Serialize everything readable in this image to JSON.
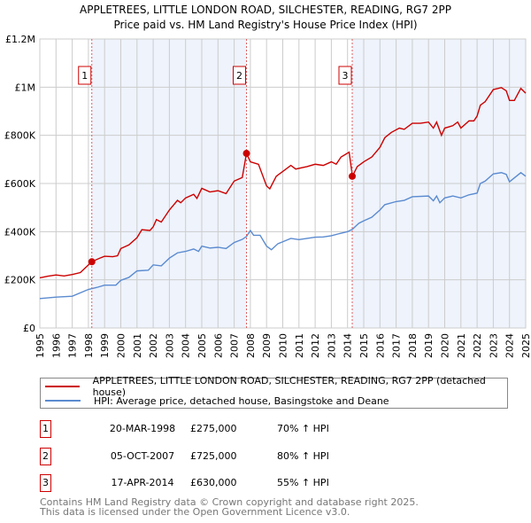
{
  "chart_data": {
    "type": "line",
    "title": "APPLETREES, LITTLE LONDON ROAD, SILCHESTER, READING, RG7 2PP",
    "subtitle": "Price paid vs. HM Land Registry's House Price Index (HPI)",
    "xlim": [
      1995,
      2025
    ],
    "ylim": [
      0,
      1200000
    ],
    "x_ticks": [
      "1995",
      "1996",
      "1997",
      "1998",
      "1999",
      "2000",
      "2001",
      "2002",
      "2003",
      "2004",
      "2005",
      "2006",
      "2007",
      "2008",
      "2009",
      "2010",
      "2011",
      "2012",
      "2013",
      "2014",
      "2015",
      "2016",
      "2017",
      "2018",
      "2019",
      "2020",
      "2021",
      "2022",
      "2023",
      "2024",
      "2025"
    ],
    "y_ticks": [
      {
        "v": 0,
        "label": "£0"
      },
      {
        "v": 200000,
        "label": "£200K"
      },
      {
        "v": 400000,
        "label": "£400K"
      },
      {
        "v": 600000,
        "label": "£600K"
      },
      {
        "v": 800000,
        "label": "£800K"
      },
      {
        "v": 1000000,
        "label": "£1M"
      },
      {
        "v": 1200000,
        "label": "£1.2M"
      }
    ],
    "grid": true,
    "series": [
      {
        "name": "APPLETREES, LITTLE LONDON ROAD, SILCHESTER, READING, RG7 2PP (detached house)",
        "color": "#cc0000",
        "points": [
          [
            1995,
            208
          ],
          [
            1995.5,
            215
          ],
          [
            1996,
            220
          ],
          [
            1996.5,
            216
          ],
          [
            1997,
            222
          ],
          [
            1997.5,
            230
          ],
          [
            1998,
            262
          ],
          [
            1998.2,
            275
          ],
          [
            1998.7,
            290
          ],
          [
            1999,
            298
          ],
          [
            1999.5,
            296
          ],
          [
            1999.8,
            300
          ],
          [
            2000,
            330
          ],
          [
            2000.5,
            345
          ],
          [
            2001,
            375
          ],
          [
            2001.3,
            408
          ],
          [
            2001.8,
            405
          ],
          [
            2002,
            420
          ],
          [
            2002.2,
            450
          ],
          [
            2002.5,
            440
          ],
          [
            2003,
            490
          ],
          [
            2003.5,
            530
          ],
          [
            2003.7,
            520
          ],
          [
            2004,
            540
          ],
          [
            2004.5,
            555
          ],
          [
            2004.7,
            538
          ],
          [
            2005,
            580
          ],
          [
            2005.5,
            565
          ],
          [
            2006,
            570
          ],
          [
            2006.5,
            558
          ],
          [
            2007,
            610
          ],
          [
            2007.5,
            625
          ],
          [
            2007.76,
            725
          ],
          [
            2008,
            690
          ],
          [
            2008.5,
            680
          ],
          [
            2009,
            590
          ],
          [
            2009.2,
            578
          ],
          [
            2009.6,
            630
          ],
          [
            2010,
            650
          ],
          [
            2010.5,
            675
          ],
          [
            2010.8,
            660
          ],
          [
            2011.5,
            670
          ],
          [
            2012,
            680
          ],
          [
            2012.5,
            675
          ],
          [
            2013,
            690
          ],
          [
            2013.3,
            680
          ],
          [
            2013.6,
            710
          ],
          [
            2014.1,
            730
          ],
          [
            2014.3,
            630
          ],
          [
            2014.6,
            670
          ],
          [
            2015,
            690
          ],
          [
            2015.5,
            710
          ],
          [
            2016,
            750
          ],
          [
            2016.3,
            790
          ],
          [
            2016.7,
            812
          ],
          [
            2017.2,
            830
          ],
          [
            2017.5,
            825
          ],
          [
            2018,
            850
          ],
          [
            2018.5,
            850
          ],
          [
            2019,
            855
          ],
          [
            2019.3,
            830
          ],
          [
            2019.5,
            855
          ],
          [
            2019.8,
            800
          ],
          [
            2020,
            830
          ],
          [
            2020.5,
            840
          ],
          [
            2020.8,
            855
          ],
          [
            2021,
            830
          ],
          [
            2021.5,
            860
          ],
          [
            2021.8,
            860
          ],
          [
            2022,
            880
          ],
          [
            2022.2,
            925
          ],
          [
            2022.5,
            940
          ],
          [
            2023,
            990
          ],
          [
            2023.5,
            998
          ],
          [
            2023.8,
            985
          ],
          [
            2024,
            945
          ],
          [
            2024.3,
            945
          ],
          [
            2024.7,
            995
          ],
          [
            2025,
            975
          ]
        ]
      },
      {
        "name": "HPI: Average price, detached house, Basingstoke and Deane",
        "color": "#5b8bd0",
        "points": [
          [
            1995,
            122
          ],
          [
            1996,
            128
          ],
          [
            1997,
            132
          ],
          [
            1998,
            160
          ],
          [
            1998.5,
            168
          ],
          [
            1999,
            178
          ],
          [
            1999.7,
            178
          ],
          [
            2000,
            198
          ],
          [
            2000.5,
            210
          ],
          [
            2001,
            237
          ],
          [
            2001.7,
            240
          ],
          [
            2002,
            262
          ],
          [
            2002.5,
            258
          ],
          [
            2003,
            290
          ],
          [
            2003.5,
            312
          ],
          [
            2004,
            318
          ],
          [
            2004.5,
            328
          ],
          [
            2004.8,
            318
          ],
          [
            2005,
            340
          ],
          [
            2005.5,
            332
          ],
          [
            2006,
            335
          ],
          [
            2006.5,
            330
          ],
          [
            2007,
            355
          ],
          [
            2007.5,
            368
          ],
          [
            2007.76,
            380
          ],
          [
            2008,
            405
          ],
          [
            2008.2,
            385
          ],
          [
            2008.6,
            385
          ],
          [
            2009,
            340
          ],
          [
            2009.3,
            325
          ],
          [
            2009.7,
            350
          ],
          [
            2010,
            358
          ],
          [
            2010.5,
            372
          ],
          [
            2011,
            367
          ],
          [
            2011.5,
            372
          ],
          [
            2012,
            377
          ],
          [
            2012.5,
            378
          ],
          [
            2013,
            383
          ],
          [
            2013.5,
            392
          ],
          [
            2014,
            400
          ],
          [
            2014.3,
            410
          ],
          [
            2014.7,
            435
          ],
          [
            2015,
            445
          ],
          [
            2015.5,
            460
          ],
          [
            2016,
            490
          ],
          [
            2016.3,
            512
          ],
          [
            2017,
            525
          ],
          [
            2017.5,
            530
          ],
          [
            2018,
            545
          ],
          [
            2019,
            548
          ],
          [
            2019.3,
            528
          ],
          [
            2019.5,
            548
          ],
          [
            2019.7,
            520
          ],
          [
            2020,
            540
          ],
          [
            2020.5,
            548
          ],
          [
            2021,
            540
          ],
          [
            2021.5,
            553
          ],
          [
            2022,
            560
          ],
          [
            2022.2,
            600
          ],
          [
            2022.5,
            610
          ],
          [
            2023,
            640
          ],
          [
            2023.5,
            645
          ],
          [
            2023.8,
            638
          ],
          [
            2024,
            607
          ],
          [
            2024.7,
            645
          ],
          [
            2025,
            630
          ]
        ]
      }
    ],
    "sales": [
      {
        "n": "1",
        "x": 1998.21,
        "value": 275000,
        "date": "20-MAR-1998",
        "price": "£275,000",
        "hpi": "70% ↑ HPI"
      },
      {
        "n": "2",
        "x": 2007.76,
        "value": 725000,
        "date": "05-OCT-2007",
        "price": "£725,000",
        "hpi": "80% ↑ HPI"
      },
      {
        "n": "3",
        "x": 2014.29,
        "value": 630000,
        "date": "17-APR-2014",
        "price": "£630,000",
        "hpi": "55% ↑ HPI"
      }
    ],
    "legend_placement": "below"
  },
  "footer": {
    "line1": "Contains HM Land Registry data © Crown copyright and database right 2025.",
    "line2": "This data is licensed under the Open Government Licence v3.0."
  }
}
